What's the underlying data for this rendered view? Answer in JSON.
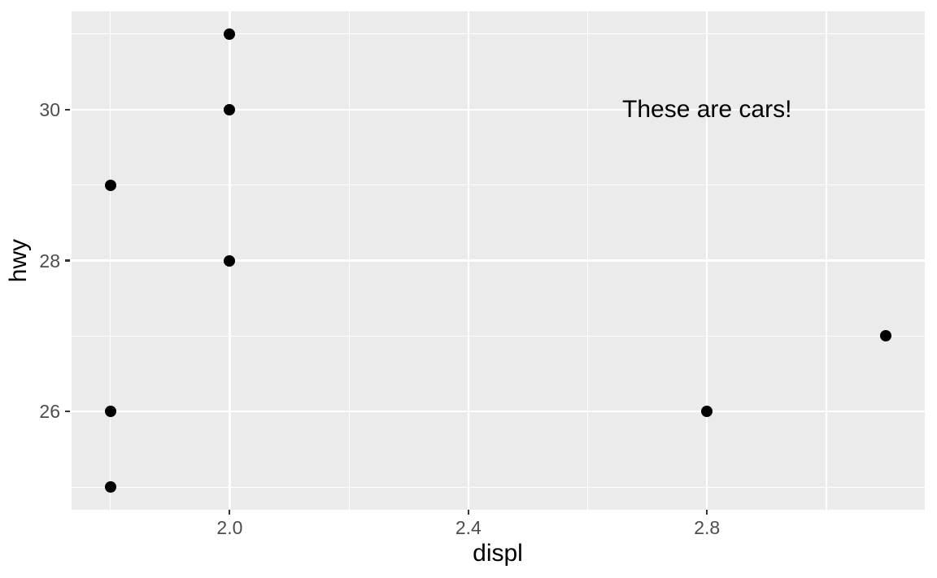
{
  "chart_data": {
    "type": "scatter",
    "xlabel": "displ",
    "ylabel": "hwy",
    "grid": "on",
    "legend": "none",
    "panel_xlim": [
      1.735,
      3.165
    ],
    "panel_ylim": [
      24.7,
      31.3
    ],
    "x_major_ticks": [
      2.0,
      2.4,
      2.8
    ],
    "x_tick_labels": [
      "2.0",
      "2.4",
      "2.8"
    ],
    "x_minor_ticks": [
      1.8,
      2.2,
      2.6,
      3.0
    ],
    "y_major_ticks": [
      26,
      28,
      30
    ],
    "y_tick_labels": [
      "26",
      "28",
      "30"
    ],
    "y_minor_ticks": [
      25,
      27,
      29,
      31
    ],
    "points": [
      {
        "displ": 1.8,
        "hwy": 29
      },
      {
        "displ": 2.0,
        "hwy": 31
      },
      {
        "displ": 2.0,
        "hwy": 30
      },
      {
        "displ": 2.0,
        "hwy": 28
      },
      {
        "displ": 2.8,
        "hwy": 26
      },
      {
        "displ": 3.1,
        "hwy": 27
      },
      {
        "displ": 1.8,
        "hwy": 26
      },
      {
        "displ": 1.8,
        "hwy": 25
      }
    ],
    "annotation": {
      "text": "These are cars!",
      "x": 2.8,
      "y": 30
    }
  },
  "style": {
    "background": "#ffffff",
    "panel_background": "#ebebeb",
    "gridline_color": "#ffffff",
    "point_color": "#000000",
    "tick_label_color": "#4d4d4d",
    "tick_mark_color": "#333333",
    "axis_title_color": "#000000",
    "annotation_color": "#000000"
  }
}
